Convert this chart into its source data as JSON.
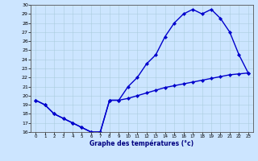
{
  "xlabel": "Graphe des températures (°c)",
  "upper_x": [
    0,
    1,
    2,
    3,
    4,
    5,
    6,
    7,
    8,
    9,
    10,
    11,
    12,
    13,
    14,
    15,
    16,
    17,
    18,
    19,
    20,
    21,
    22,
    23
  ],
  "upper_y": [
    19.5,
    19.0,
    18.0,
    17.5,
    17.0,
    16.5,
    16.0,
    16.0,
    19.5,
    19.5,
    21.0,
    22.0,
    23.5,
    24.5,
    26.5,
    28.0,
    29.0,
    29.5,
    29.0,
    29.5,
    28.5,
    27.0,
    24.5,
    22.5
  ],
  "lower_x": [
    0,
    1,
    2,
    3,
    4,
    5,
    6,
    7,
    8,
    9,
    10,
    11,
    12,
    13,
    14,
    15,
    16,
    17,
    18,
    19,
    20,
    21,
    22,
    23
  ],
  "lower_y": [
    19.5,
    19.0,
    18.0,
    17.5,
    17.0,
    16.5,
    16.0,
    16.0,
    19.5,
    19.5,
    19.7,
    20.0,
    20.3,
    20.6,
    20.9,
    21.1,
    21.3,
    21.5,
    21.7,
    21.9,
    22.1,
    22.3,
    22.4,
    22.5
  ],
  "ylim": [
    16,
    30
  ],
  "xlim": [
    -0.5,
    23.5
  ],
  "yticks": [
    16,
    17,
    18,
    19,
    20,
    21,
    22,
    23,
    24,
    25,
    26,
    27,
    28,
    29,
    30
  ],
  "xticks": [
    0,
    1,
    2,
    3,
    4,
    5,
    6,
    7,
    8,
    9,
    10,
    11,
    12,
    13,
    14,
    15,
    16,
    17,
    18,
    19,
    20,
    21,
    22,
    23
  ],
  "line_color": "#0000cc",
  "bg_color": "#cce5ff",
  "grid_color": "#aaccdd",
  "markersize": 2.2,
  "linewidth": 1.0
}
